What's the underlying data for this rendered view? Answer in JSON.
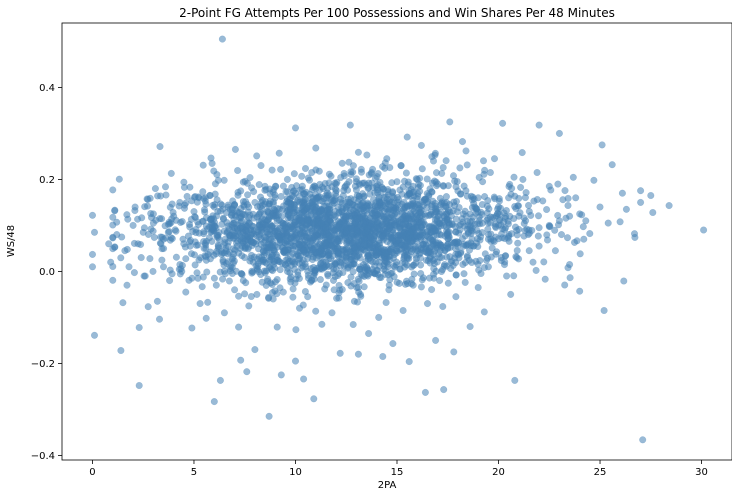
{
  "chart_data": {
    "type": "scatter",
    "title": "2-Point FG Attempts Per 100 Possessions and Win Shares Per 48 Minutes",
    "xlabel": "2PA",
    "ylabel": "WS/48",
    "xlim": [
      -1.5,
      31.5
    ],
    "ylim": [
      -0.41,
      0.54
    ],
    "xticks": [
      0,
      5,
      10,
      15,
      20,
      25,
      30
    ],
    "yticks": [
      -0.4,
      -0.2,
      0.0,
      0.2,
      0.4
    ],
    "xtick_labels": [
      "0",
      "5",
      "10",
      "15",
      "20",
      "25",
      "30"
    ],
    "ytick_labels": [
      "−0.4",
      "−0.2",
      "0.0",
      "0.2",
      "0.4"
    ],
    "grid": false,
    "point_color": "#4682b4",
    "point_opacity": 0.55,
    "points": [
      [
        6.4,
        0.505
      ],
      [
        27.1,
        -0.366
      ],
      [
        8.7,
        -0.315
      ],
      [
        10.9,
        -0.277
      ],
      [
        6.0,
        -0.283
      ],
      [
        2.3,
        -0.248
      ],
      [
        6.3,
        -0.237
      ],
      [
        10.4,
        -0.234
      ],
      [
        16.4,
        -0.263
      ],
      [
        17.3,
        -0.257
      ],
      [
        20.8,
        -0.237
      ],
      [
        9.3,
        -0.225
      ],
      [
        7.6,
        -0.218
      ],
      [
        1.4,
        -0.172
      ],
      [
        7.3,
        -0.193
      ],
      [
        10.0,
        -0.195
      ],
      [
        13.1,
        -0.18
      ],
      [
        14.3,
        -0.185
      ],
      [
        15.6,
        -0.196
      ],
      [
        17.8,
        -0.175
      ],
      [
        0.1,
        -0.139
      ],
      [
        25.2,
        -0.085
      ],
      [
        24.0,
        -0.043
      ],
      [
        30.1,
        0.09
      ],
      [
        28.4,
        0.143
      ],
      [
        27.5,
        0.165
      ],
      [
        26.1,
        0.17
      ],
      [
        25.6,
        0.232
      ],
      [
        25.1,
        0.275
      ],
      [
        23.0,
        0.3
      ],
      [
        22.0,
        0.318
      ],
      [
        20.2,
        0.322
      ],
      [
        17.6,
        0.325
      ],
      [
        15.5,
        0.292
      ],
      [
        12.7,
        0.318
      ],
      [
        10.0,
        0.312
      ],
      [
        11.0,
        0.268
      ],
      [
        0.0,
        0.122
      ],
      [
        0.1,
        0.085
      ],
      [
        0.0,
        0.037
      ],
      [
        0.0,
        0.01
      ],
      [
        1.5,
        -0.068
      ],
      [
        2.3,
        -0.122
      ],
      [
        1.7,
        -0.03
      ],
      [
        3.2,
        -0.065
      ],
      [
        3.3,
        -0.104
      ],
      [
        4.9,
        -0.123
      ],
      [
        5.6,
        -0.102
      ],
      [
        7.2,
        -0.121
      ],
      [
        8.0,
        -0.17
      ],
      [
        9.1,
        -0.121
      ],
      [
        11.3,
        -0.115
      ],
      [
        12.2,
        -0.178
      ],
      [
        13.6,
        -0.135
      ],
      [
        14.8,
        -0.157
      ],
      [
        16.9,
        -0.15
      ],
      [
        18.6,
        -0.12
      ],
      [
        19.3,
        -0.088
      ],
      [
        20.6,
        -0.05
      ],
      [
        22.3,
        -0.017
      ],
      [
        23.5,
        0.015
      ],
      [
        26.7,
        0.082
      ],
      [
        27.6,
        0.128
      ],
      [
        24.7,
        0.198
      ],
      [
        21.9,
        0.215
      ],
      [
        19.8,
        0.245
      ],
      [
        18.4,
        0.262
      ],
      [
        16.2,
        0.274
      ],
      [
        14.5,
        0.245
      ],
      [
        13.1,
        0.259
      ],
      [
        9.2,
        0.257
      ],
      [
        8.3,
        0.23
      ],
      [
        6.2,
        0.198
      ],
      [
        4.8,
        0.183
      ],
      [
        3.1,
        0.18
      ],
      [
        2.1,
        0.14
      ],
      [
        1.1,
        0.133
      ],
      [
        0.9,
        0.02
      ],
      [
        1.8,
        0.01
      ],
      [
        2.6,
        -0.01
      ],
      [
        3.8,
        -0.02
      ],
      [
        4.6,
        -0.045
      ],
      [
        5.3,
        -0.07
      ],
      [
        6.5,
        -0.09
      ],
      [
        7.7,
        -0.075
      ],
      [
        8.9,
        -0.06
      ],
      [
        10.2,
        -0.08
      ],
      [
        11.8,
        -0.09
      ],
      [
        12.9,
        -0.065
      ],
      [
        14.1,
        -0.1
      ],
      [
        15.3,
        -0.085
      ],
      [
        16.5,
        -0.07
      ],
      [
        17.9,
        -0.055
      ],
      [
        19.0,
        -0.035
      ],
      [
        20.4,
        -0.01
      ],
      [
        21.7,
        0.02
      ],
      [
        22.8,
        0.045
      ],
      [
        24.2,
        0.07
      ],
      [
        25.4,
        0.105
      ],
      [
        26.3,
        0.135
      ],
      [
        23.8,
        0.16
      ],
      [
        22.5,
        0.185
      ],
      [
        21.2,
        0.2
      ],
      [
        19.6,
        0.215
      ],
      [
        18.1,
        0.225
      ],
      [
        16.8,
        0.24
      ],
      [
        15.2,
        0.23
      ],
      [
        13.8,
        0.222
      ],
      [
        12.3,
        0.235
      ],
      [
        10.8,
        0.215
      ],
      [
        9.6,
        0.2
      ],
      [
        8.5,
        0.185
      ],
      [
        7.3,
        0.175
      ],
      [
        5.8,
        0.165
      ],
      [
        4.3,
        0.15
      ],
      [
        3.0,
        0.125
      ],
      [
        2.0,
        0.1
      ],
      [
        1.2,
        0.08
      ],
      [
        0.8,
        0.06
      ],
      [
        1.6,
        0.045
      ],
      [
        2.4,
        0.03
      ],
      [
        3.5,
        0.01
      ],
      [
        4.4,
        0.0
      ],
      [
        5.2,
        -0.015
      ],
      [
        6.1,
        -0.03
      ],
      [
        7.0,
        -0.04
      ],
      [
        8.1,
        -0.05
      ],
      [
        9.4,
        -0.045
      ],
      [
        10.6,
        -0.055
      ],
      [
        11.9,
        -0.04
      ],
      [
        13.2,
        -0.05
      ],
      [
        14.6,
        -0.04
      ],
      [
        15.8,
        -0.03
      ],
      [
        17.1,
        -0.02
      ],
      [
        18.3,
        -0.005
      ],
      [
        19.5,
        0.01
      ],
      [
        20.9,
        0.03
      ],
      [
        22.0,
        0.055
      ],
      [
        23.1,
        0.08
      ],
      [
        24.3,
        0.11
      ],
      [
        25.0,
        0.14
      ],
      [
        24.0,
        0.125
      ],
      [
        23.0,
        0.11
      ],
      [
        22.0,
        0.095
      ],
      [
        21.0,
        0.12
      ],
      [
        20.0,
        0.14
      ],
      [
        19.0,
        0.16
      ],
      [
        18.0,
        0.175
      ],
      [
        17.0,
        0.19
      ],
      [
        16.0,
        0.2
      ],
      [
        15.0,
        0.195
      ],
      [
        14.0,
        0.185
      ],
      [
        13.0,
        0.195
      ],
      [
        12.0,
        0.19
      ],
      [
        11.0,
        0.18
      ],
      [
        10.0,
        0.17
      ],
      [
        9.0,
        0.16
      ],
      [
        8.0,
        0.15
      ],
      [
        7.0,
        0.145
      ],
      [
        6.0,
        0.14
      ],
      [
        5.0,
        0.13
      ],
      [
        4.0,
        0.12
      ],
      [
        3.0,
        0.105
      ],
      [
        2.5,
        0.085
      ],
      [
        3.5,
        0.07
      ],
      [
        4.5,
        0.06
      ],
      [
        5.5,
        0.05
      ],
      [
        6.5,
        0.04
      ],
      [
        7.5,
        0.03
      ],
      [
        8.5,
        0.02
      ],
      [
        9.5,
        0.015
      ],
      [
        10.5,
        0.01
      ],
      [
        11.5,
        0.02
      ],
      [
        12.5,
        0.015
      ],
      [
        13.5,
        0.01
      ],
      [
        14.5,
        0.02
      ],
      [
        15.5,
        0.03
      ],
      [
        16.5,
        0.04
      ],
      [
        17.5,
        0.05
      ],
      [
        18.5,
        0.06
      ],
      [
        19.5,
        0.07
      ],
      [
        20.5,
        0.08
      ],
      [
        21.5,
        0.09
      ],
      [
        22.5,
        0.1
      ],
      [
        23.5,
        0.12
      ]
    ]
  },
  "cluster": {
    "n": 2600,
    "seed": 1337
  }
}
